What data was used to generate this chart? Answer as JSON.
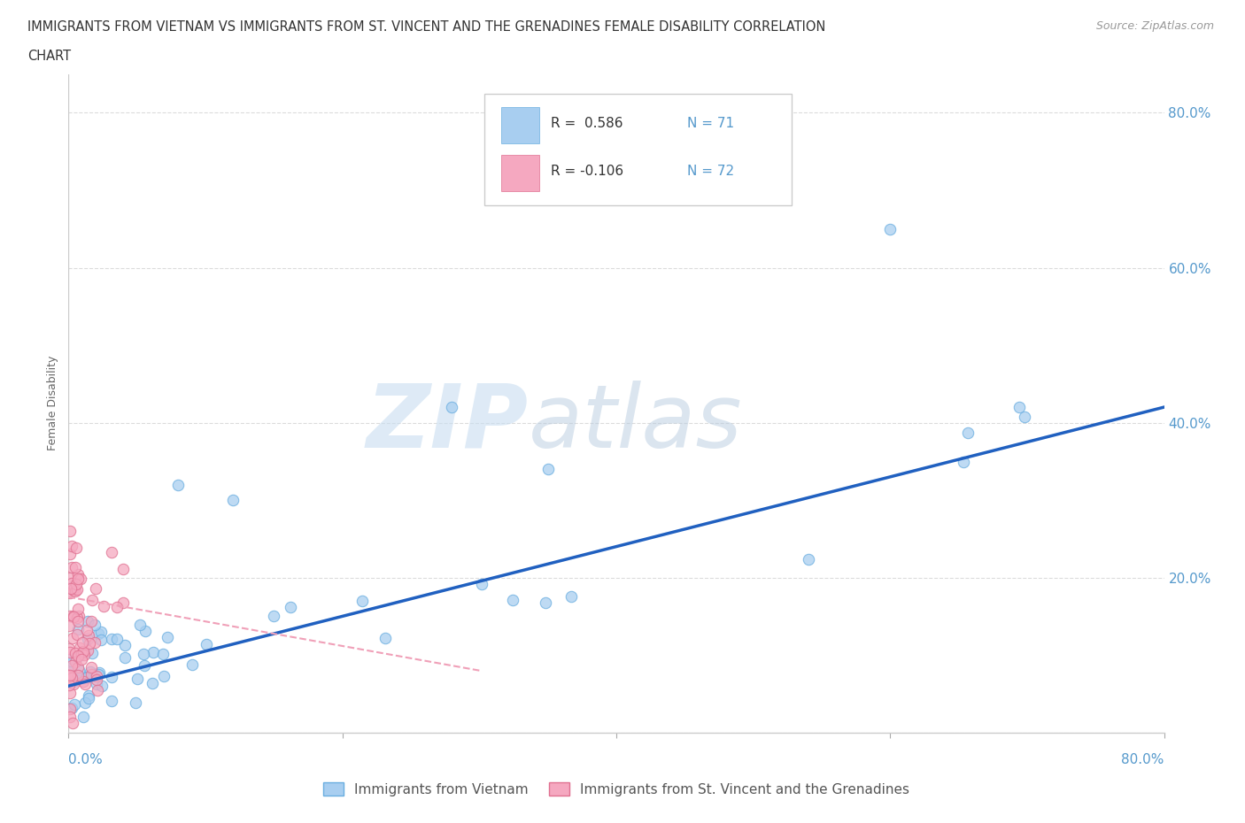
{
  "title_line1": "IMMIGRANTS FROM VIETNAM VS IMMIGRANTS FROM ST. VINCENT AND THE GRENADINES FEMALE DISABILITY CORRELATION",
  "title_line2": "CHART",
  "source_text": "Source: ZipAtlas.com",
  "watermark_zip": "ZIP",
  "watermark_atlas": "atlas",
  "ylabel": "Female Disability",
  "color_vietnam": "#a8cef0",
  "color_vietnam_edge": "#6aaee0",
  "color_svg": "#f5a8c0",
  "color_svg_edge": "#e07090",
  "color_trend_vietnam": "#2060c0",
  "color_trend_svg": "#f0a0b8",
  "legend_label1": "Immigrants from Vietnam",
  "legend_label2": "Immigrants from St. Vincent and the Grenadines",
  "background_color": "#ffffff",
  "grid_color": "#d8d8d8"
}
